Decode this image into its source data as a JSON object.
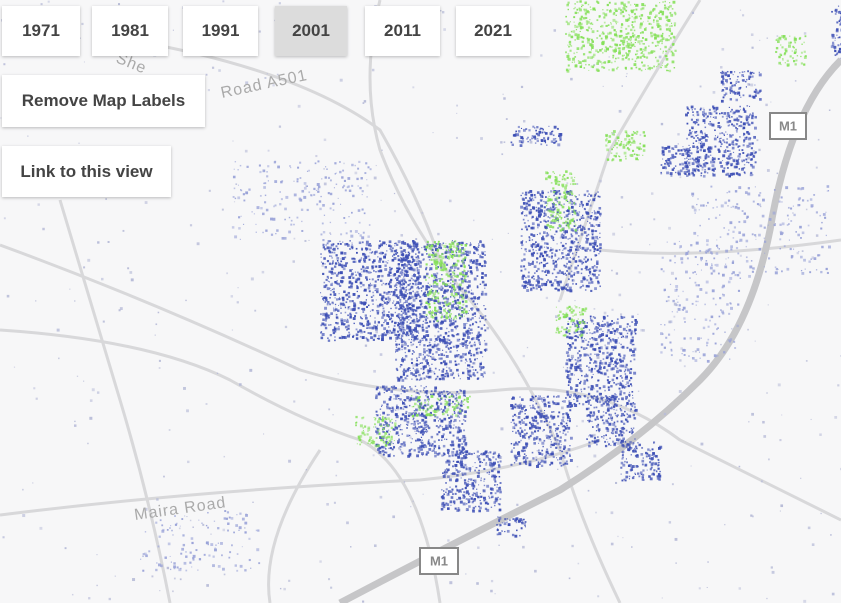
{
  "controls": {
    "years": [
      "1971",
      "1981",
      "1991",
      "2001",
      "2011",
      "2021"
    ],
    "remove_labels": "Remove Map Labels",
    "link": "Link to this view"
  },
  "map": {
    "labels": [
      "She",
      "Road A501",
      "Maira Road"
    ],
    "shields": [
      "M1",
      "M1"
    ]
  }
}
